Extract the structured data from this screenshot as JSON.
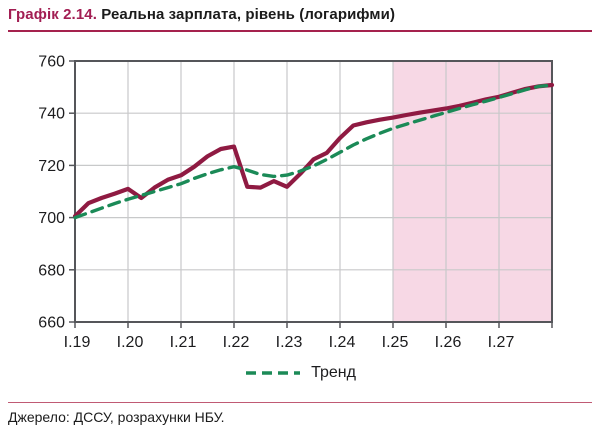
{
  "header": {
    "chart_label": "Графік 2.14.",
    "title": "Реальна зарплата, рівень (логарифми)"
  },
  "legend": [
    {
      "label": "Тренд",
      "color": "#1B8A57",
      "style": "dashed"
    }
  ],
  "footer": {
    "source": "Джерело: ДССУ, розрахунки НБУ."
  },
  "colors": {
    "accent": "#A21E53",
    "actual_line": "#8F1A42",
    "trend_line": "#1B8A57",
    "forecast_band": "#F7D8E5",
    "grid": "#C8C9CA",
    "axis": "#55565A",
    "text": "#1C1C1E"
  },
  "chart_data": {
    "type": "line",
    "title": "Реальна зарплата, рівень (логарифми)",
    "ylim": [
      660,
      760
    ],
    "y_ticks": [
      660,
      680,
      700,
      720,
      740,
      760
    ],
    "x_tick_labels": [
      "І.19",
      "І.20",
      "І.21",
      "І.22",
      "І.23",
      "І.24",
      "І.25",
      "І.26",
      "І.27"
    ],
    "x_unit": "quarter, first point = І.19 (Q1 2019), 4 points per year",
    "points_per_year": 4,
    "forecast_start_index": 24,
    "forecast_band_range_labels": [
      "І.25",
      "right edge"
    ],
    "grid": true,
    "legend_position": "bottom",
    "series": [
      {
        "name": "Реальна зарплата, рівень",
        "style": "solid",
        "color": "#8F1A42",
        "values": [
          700.5,
          705.5,
          707.5,
          709.2,
          711,
          707.5,
          711.5,
          714.5,
          716.2,
          719.5,
          723.5,
          726.3,
          727.2,
          711.8,
          711.5,
          714,
          711.8,
          716.8,
          722.3,
          724.8,
          730.5,
          735.3,
          736.5,
          737.5,
          738.3,
          739.3,
          740.2,
          741,
          741.8,
          742.8,
          744,
          745.3,
          746.3,
          747.8,
          749.3,
          750.3,
          750.8
        ]
      },
      {
        "name": "Тренд",
        "style": "dashed",
        "color": "#1B8A57",
        "values": [
          700,
          701.8,
          703.6,
          705.4,
          707,
          708.5,
          710,
          711.5,
          713,
          715,
          716.8,
          718.3,
          719.5,
          718.2,
          716.5,
          715.8,
          716.3,
          717.8,
          719.8,
          722.3,
          725,
          727.8,
          730.2,
          732.3,
          734.2,
          735.8,
          737.3,
          738.8,
          740.3,
          741.8,
          743.2,
          744.6,
          746,
          747.5,
          749,
          750.3,
          750.7
        ]
      }
    ]
  }
}
